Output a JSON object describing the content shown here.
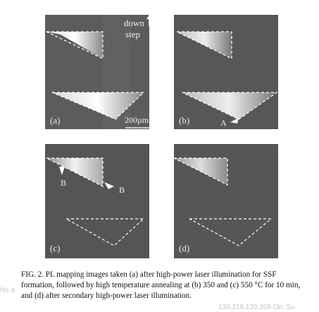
{
  "figure": {
    "panels": [
      {
        "id": "a",
        "label": "(a)",
        "annotations": {
          "down": "down",
          "step": "step",
          "scale": "200µm"
        }
      },
      {
        "id": "b",
        "label": "(b)",
        "annotations": {
          "marker": "A"
        }
      },
      {
        "id": "c",
        "label": "(c)",
        "annotations": {
          "marker1": "B",
          "marker2": "B"
        }
      },
      {
        "id": "d",
        "label": "(d)",
        "annotations": {}
      }
    ],
    "caption": "FIG. 2. PL mapping images taken (a) after high-power laser illumination for SSF formation, followed by high temperature annealing at (b) 350 and (c) 550 °C for 10 min, and (d) after secondary high-power laser illumination."
  },
  "watermark": {
    "left_text": "his a",
    "right_text": "130.216.129.208 On: Su"
  }
}
